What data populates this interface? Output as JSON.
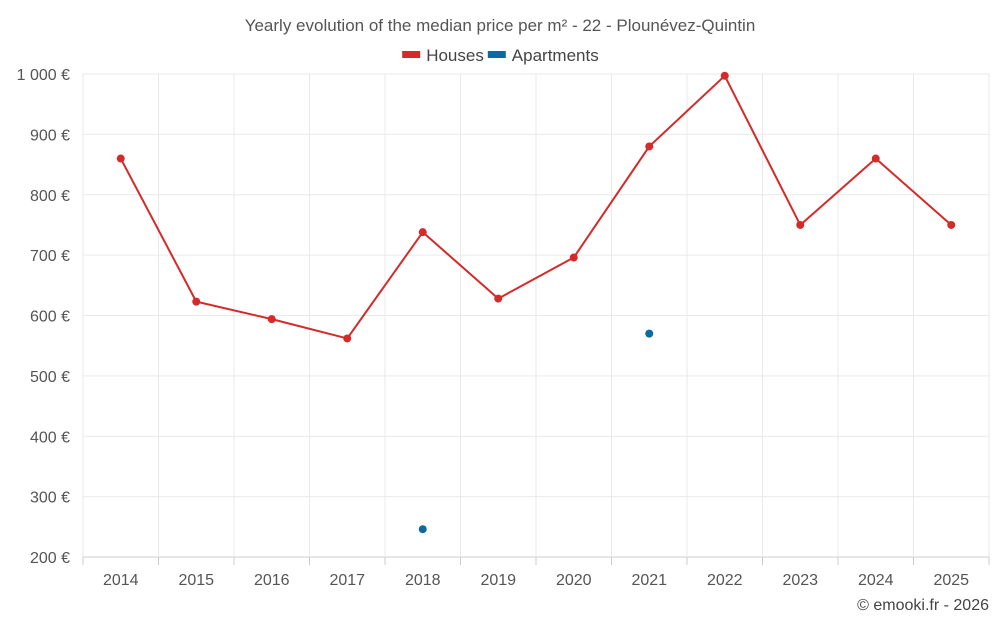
{
  "chart_data": {
    "type": "line",
    "title": "Yearly evolution of the median price per m² - 22 - Plounévez-Quintin",
    "xlabel": "",
    "ylabel": "",
    "categories": [
      "2014",
      "2015",
      "2016",
      "2017",
      "2018",
      "2019",
      "2020",
      "2021",
      "2022",
      "2023",
      "2024",
      "2025"
    ],
    "ylim": [
      200,
      1000
    ],
    "yticks": [
      200,
      300,
      400,
      500,
      600,
      700,
      800,
      900,
      1000
    ],
    "ytick_labels": [
      "200 €",
      "300 €",
      "400 €",
      "500 €",
      "600 €",
      "700 €",
      "800 €",
      "900 €",
      "1 000 €"
    ],
    "grid": true,
    "legend_position": "top-center",
    "series": [
      {
        "name": "Houses",
        "color": "#d42a2a",
        "values": [
          860,
          623,
          594,
          562,
          738,
          628,
          696,
          880,
          997,
          750,
          860,
          750
        ]
      },
      {
        "name": "Apartments",
        "color": "#0a6aa1",
        "values": [
          null,
          null,
          null,
          null,
          246,
          null,
          null,
          570,
          null,
          null,
          null,
          null
        ]
      }
    ]
  },
  "credit": "© emooki.fr - 2026"
}
